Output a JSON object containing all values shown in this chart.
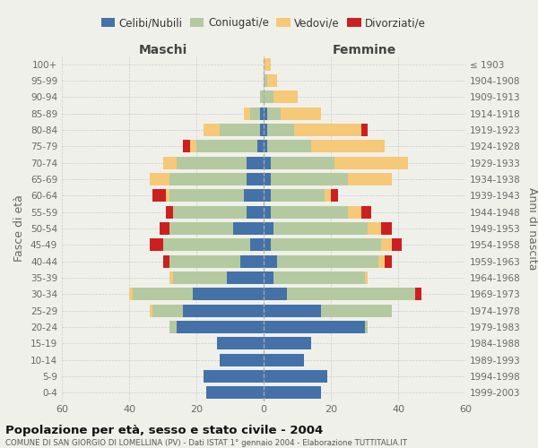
{
  "age_groups": [
    "0-4",
    "5-9",
    "10-14",
    "15-19",
    "20-24",
    "25-29",
    "30-34",
    "35-39",
    "40-44",
    "45-49",
    "50-54",
    "55-59",
    "60-64",
    "65-69",
    "70-74",
    "75-79",
    "80-84",
    "85-89",
    "90-94",
    "95-99",
    "100+"
  ],
  "birth_years": [
    "1999-2003",
    "1994-1998",
    "1989-1993",
    "1984-1988",
    "1979-1983",
    "1974-1978",
    "1969-1973",
    "1964-1968",
    "1959-1963",
    "1954-1958",
    "1949-1953",
    "1944-1948",
    "1939-1943",
    "1934-1938",
    "1929-1933",
    "1924-1928",
    "1919-1923",
    "1914-1918",
    "1909-1913",
    "1904-1908",
    "≤ 1903"
  ],
  "colors": {
    "celibe": "#4472a8",
    "coniugato": "#b5c9a0",
    "vedovo": "#f5c978",
    "divorziato": "#cc2020"
  },
  "maschi": {
    "celibe": [
      17,
      18,
      13,
      14,
      26,
      24,
      21,
      11,
      7,
      4,
      9,
      5,
      6,
      5,
      5,
      2,
      1,
      1,
      0,
      0,
      0
    ],
    "coniugato": [
      0,
      0,
      0,
      0,
      2,
      9,
      18,
      16,
      21,
      26,
      19,
      22,
      22,
      23,
      21,
      18,
      12,
      3,
      1,
      0,
      0
    ],
    "vedovo": [
      0,
      0,
      0,
      0,
      0,
      1,
      1,
      1,
      0,
      0,
      0,
      0,
      1,
      6,
      4,
      2,
      5,
      2,
      0,
      0,
      0
    ],
    "divorziato": [
      0,
      0,
      0,
      0,
      0,
      0,
      0,
      0,
      2,
      4,
      3,
      2,
      4,
      0,
      0,
      2,
      0,
      0,
      0,
      0,
      0
    ]
  },
  "femmine": {
    "celibe": [
      17,
      19,
      12,
      14,
      30,
      17,
      7,
      3,
      4,
      2,
      3,
      2,
      2,
      2,
      2,
      1,
      1,
      1,
      0,
      0,
      0
    ],
    "coniugato": [
      0,
      0,
      0,
      0,
      1,
      21,
      38,
      27,
      30,
      33,
      28,
      23,
      16,
      23,
      19,
      13,
      8,
      4,
      3,
      1,
      0
    ],
    "vedovo": [
      0,
      0,
      0,
      0,
      0,
      0,
      0,
      1,
      2,
      3,
      4,
      4,
      2,
      13,
      22,
      22,
      20,
      12,
      7,
      3,
      2
    ],
    "divorziato": [
      0,
      0,
      0,
      0,
      0,
      0,
      2,
      0,
      2,
      3,
      3,
      3,
      2,
      0,
      0,
      0,
      2,
      0,
      0,
      0,
      0
    ]
  },
  "xlim": 60,
  "title_main": "Popolazione per età, sesso e stato civile - 2004",
  "title_sub": "COMUNE DI SAN GIORGIO DI LOMELLINA (PV) - Dati ISTAT 1° gennaio 2004 - Elaborazione TUTTITALIA.IT",
  "ylabel_left": "Fasce di età",
  "ylabel_right": "Anni di nascita",
  "xlabel_maschi": "Maschi",
  "xlabel_femmine": "Femmine",
  "legend_labels": [
    "Celibi/Nubili",
    "Coniugati/e",
    "Vedovi/e",
    "Divorziati/e"
  ],
  "bg_color": "#f0f0eb",
  "bar_height": 0.78
}
